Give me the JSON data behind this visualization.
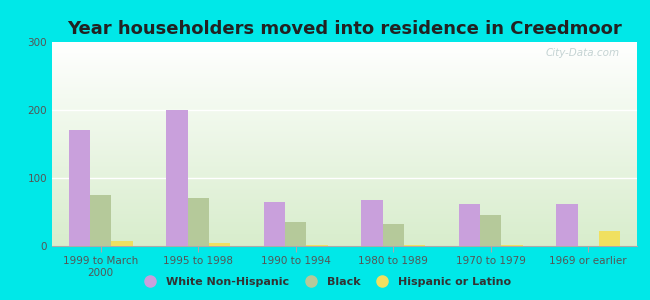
{
  "title": "Year householders moved into residence in Creedmoor",
  "categories": [
    "1999 to March\n2000",
    "1995 to 1998",
    "1990 to 1994",
    "1980 to 1989",
    "1970 to 1979",
    "1969 or earlier"
  ],
  "white_non_hispanic": [
    170,
    200,
    65,
    68,
    62,
    62
  ],
  "black": [
    75,
    70,
    35,
    33,
    45,
    0
  ],
  "hispanic_or_latino": [
    7,
    4,
    2,
    2,
    2,
    22
  ],
  "colors": {
    "white_non_hispanic": "#c9a0dc",
    "black": "#b5c99a",
    "hispanic_or_latino": "#f0e060"
  },
  "legend_labels": [
    "White Non-Hispanic",
    "Black",
    "Hispanic or Latino"
  ],
  "ylim": [
    0,
    300
  ],
  "yticks": [
    0,
    100,
    200,
    300
  ],
  "background_outer": "#00e8e8",
  "watermark": "City-Data.com",
  "title_fontsize": 13,
  "tick_fontsize": 7.5
}
